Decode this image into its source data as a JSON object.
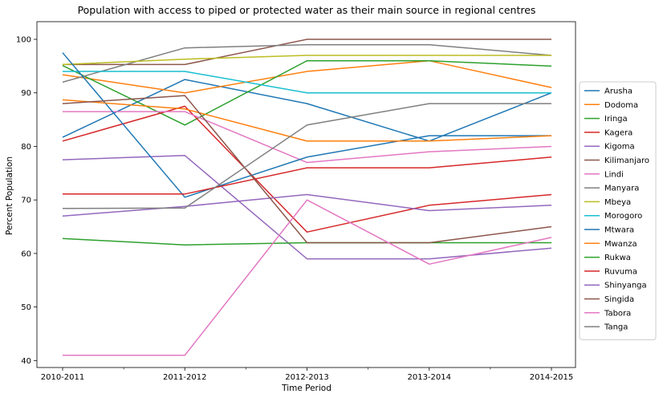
{
  "chart_data": {
    "type": "line",
    "title": "Population with access to piped or protected water as their main source in regional centres",
    "xlabel": "Time Period",
    "ylabel": "Percent Population",
    "categories": [
      "2010-2011",
      "2011-2012",
      "2012-2013",
      "2013-2014",
      "2014-2015"
    ],
    "ylim": [
      38.7,
      103.3
    ],
    "yticks": [
      40,
      50,
      60,
      70,
      80,
      90,
      100
    ],
    "grid": false,
    "legend_position": "right",
    "series": [
      {
        "name": "Arusha",
        "color": "#1f77b4",
        "values": [
          81.7,
          92.5,
          88,
          81,
          90
        ]
      },
      {
        "name": "Dodoma",
        "color": "#ff7f0e",
        "values": [
          93.4,
          90,
          94,
          96,
          91
        ]
      },
      {
        "name": "Iringa",
        "color": "#2ca02c",
        "values": [
          95.1,
          84,
          96,
          96,
          95
        ]
      },
      {
        "name": "Kagera",
        "color": "#d62728",
        "values": [
          81,
          87.5,
          64,
          69,
          71
        ]
      },
      {
        "name": "Kigoma",
        "color": "#9467bd",
        "values": [
          77.5,
          78.3,
          59,
          59,
          61
        ]
      },
      {
        "name": "Kilimanjaro",
        "color": "#8c564b",
        "values": [
          95.3,
          95.3,
          100,
          100,
          100
        ]
      },
      {
        "name": "Lindi",
        "color": "#e377c2",
        "values": [
          86.5,
          86.5,
          77,
          79,
          80
        ]
      },
      {
        "name": "Manyara",
        "color": "#7f7f7f",
        "values": [
          92,
          98.4,
          99,
          99,
          97
        ]
      },
      {
        "name": "Mbeya",
        "color": "#bcbd22",
        "values": [
          95.3,
          96.3,
          97,
          97,
          97
        ]
      },
      {
        "name": "Morogoro",
        "color": "#17becf",
        "values": [
          94,
          94,
          90,
          90,
          90
        ]
      },
      {
        "name": "Mtwara",
        "color": "#1f77b4",
        "values": [
          97.5,
          70.5,
          78,
          82,
          82
        ]
      },
      {
        "name": "Mwanza",
        "color": "#ff7f0e",
        "values": [
          88.7,
          87,
          81,
          81,
          82
        ]
      },
      {
        "name": "Rukwa",
        "color": "#2ca02c",
        "values": [
          62.8,
          61.6,
          62,
          62,
          62
        ]
      },
      {
        "name": "Ruvuma",
        "color": "#d62728",
        "values": [
          71.1,
          71.1,
          76,
          76,
          78
        ]
      },
      {
        "name": "Shinyanga",
        "color": "#9467bd",
        "values": [
          67,
          68.8,
          71,
          68,
          69
        ]
      },
      {
        "name": "Singida",
        "color": "#8c564b",
        "values": [
          88,
          89.5,
          62,
          62,
          65
        ]
      },
      {
        "name": "Tabora",
        "color": "#e377c2",
        "values": [
          41,
          41,
          70,
          58,
          63
        ]
      },
      {
        "name": "Tanga",
        "color": "#7f7f7f",
        "values": [
          68.4,
          68.5,
          84,
          88,
          88
        ]
      }
    ]
  }
}
